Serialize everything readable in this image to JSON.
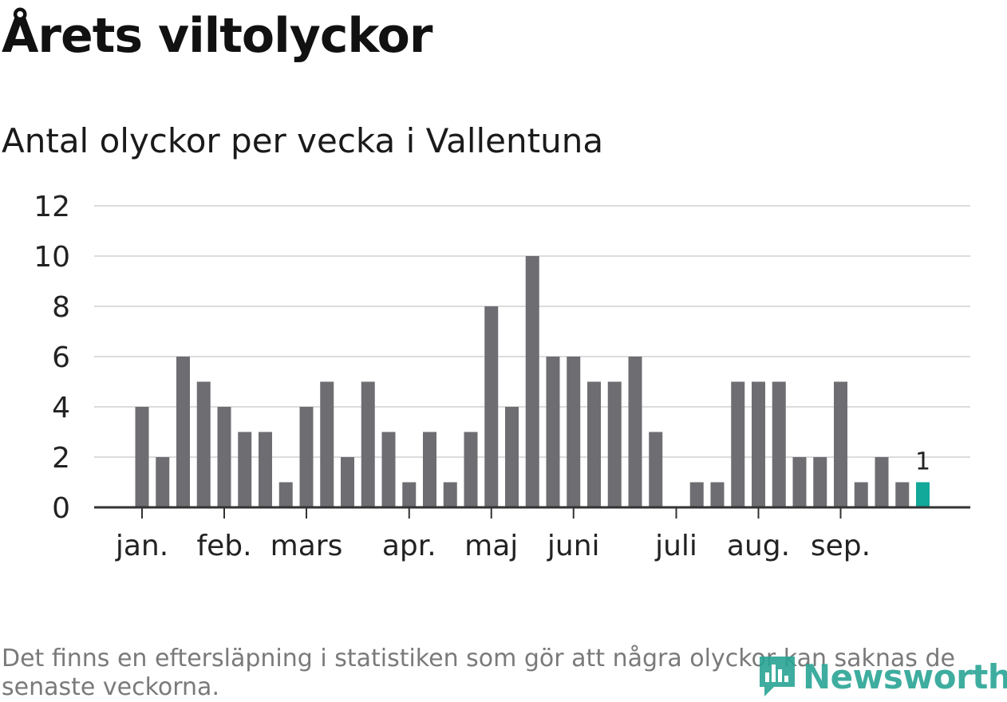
{
  "title": "Årets viltolyckor",
  "subtitle": "Antal olyckor per vecka i Vallentuna",
  "footnote": "Det finns en eftersläpning i statistiken som gör att några olyckor kan saknas de senaste veckorna.",
  "logo": {
    "text": "Newsworthy",
    "icon": "newsworthy-logo-icon",
    "color": "#2aa595"
  },
  "colors": {
    "bar": "#6e6d72",
    "highlight": "#12a89a",
    "grid": "#dcdcdc",
    "axis": "#333333"
  },
  "chart_data": {
    "type": "bar",
    "title": "Årets viltolyckor",
    "subtitle": "Antal olyckor per vecka i Vallentuna",
    "xlabel": "",
    "ylabel": "",
    "ylim": [
      0,
      12
    ],
    "yticks": [
      0,
      2,
      4,
      6,
      8,
      10,
      12
    ],
    "grid": true,
    "legend": "none",
    "month_labels": [
      {
        "label": "jan.",
        "week": 1
      },
      {
        "label": "feb.",
        "week": 5
      },
      {
        "label": "mars",
        "week": 9
      },
      {
        "label": "apr.",
        "week": 14
      },
      {
        "label": "maj",
        "week": 18
      },
      {
        "label": "juni",
        "week": 22
      },
      {
        "label": "juli",
        "week": 27
      },
      {
        "label": "aug.",
        "week": 31
      },
      {
        "label": "sep.",
        "week": 35
      }
    ],
    "weeks": [
      1,
      2,
      3,
      4,
      5,
      6,
      7,
      8,
      9,
      10,
      11,
      12,
      13,
      14,
      15,
      16,
      17,
      18,
      19,
      20,
      21,
      22,
      23,
      24,
      25,
      26,
      27,
      28,
      29,
      30,
      31,
      32,
      33,
      34,
      35,
      36,
      37,
      38,
      39
    ],
    "values": [
      4,
      2,
      6,
      5,
      4,
      3,
      3,
      1,
      4,
      5,
      2,
      5,
      3,
      1,
      3,
      1,
      3,
      8,
      4,
      10,
      6,
      6,
      5,
      5,
      6,
      3,
      0,
      1,
      1,
      5,
      5,
      5,
      2,
      2,
      5,
      1,
      2,
      1,
      1
    ],
    "highlight_last": true,
    "last_value_label": "1"
  }
}
